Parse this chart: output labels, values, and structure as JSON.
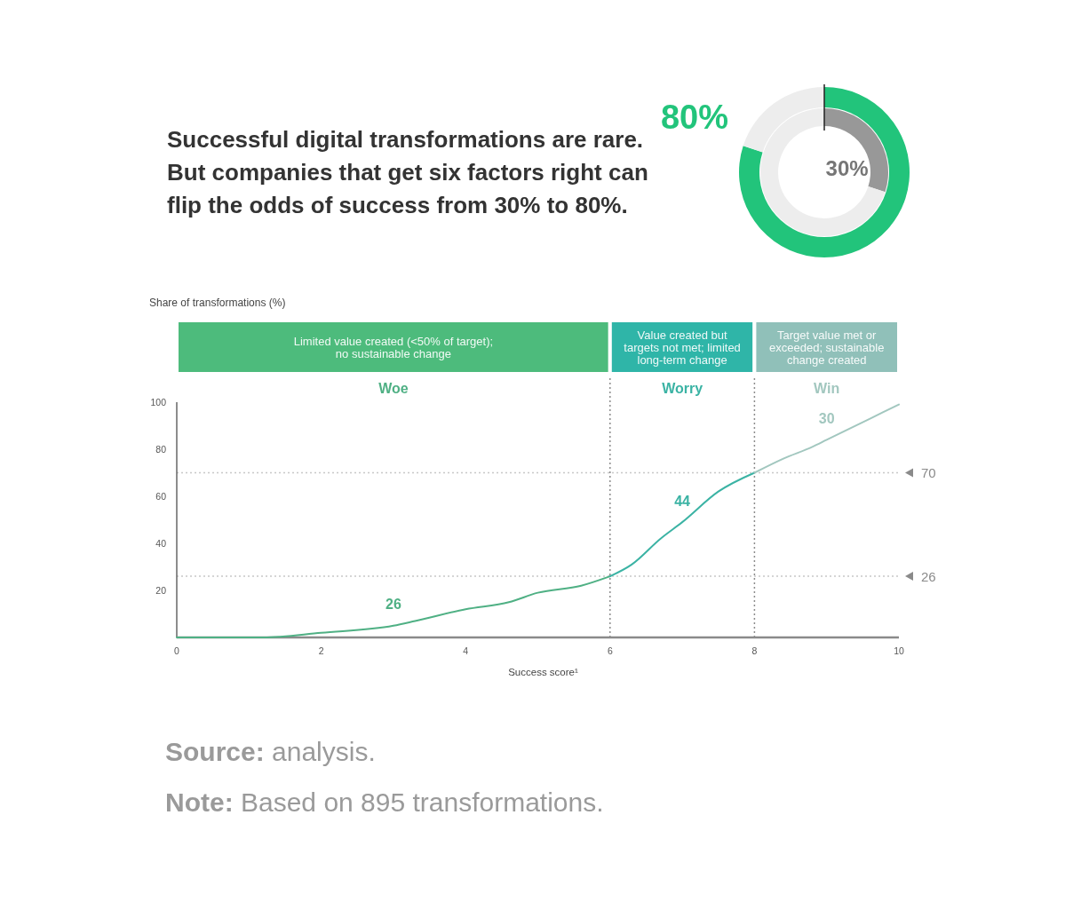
{
  "chart_data": [
    {
      "type": "donut",
      "title": "Successful digital transformations are rare. But companies that get six factors right can flip the odds of success from 30% to 80%.",
      "series": [
        {
          "values": [
            80,
            20
          ],
          "colors": [
            "#22c47b",
            "#ededed"
          ],
          "value_labels": [
            "80%",
            null
          ]
        },
        {
          "values": [
            30,
            70
          ],
          "colors": [
            "#989898",
            "#ededed"
          ],
          "value_labels": [
            "30%",
            null
          ]
        }
      ]
    },
    {
      "type": "bar",
      "orientation": "horizontal",
      "stacked": true,
      "categories": [
        null
      ],
      "xlim": [
        0,
        10
      ],
      "tick_labels": false,
      "series": [
        {
          "name": "Limited value created (<50% of target); no sustainable change",
          "color": "#4dbb7c",
          "values": [
            6
          ]
        },
        {
          "name": "Value created but targets not met; limited long-term change",
          "color": "#2fb5a8",
          "values": [
            2
          ]
        },
        {
          "name": "Target value met or exceeded; sustainable change created",
          "color": "#90c0b9",
          "values": [
            2
          ]
        }
      ]
    },
    {
      "type": "line",
      "ylabel": "Share of transformations (%)",
      "xlabel": "Success score¹",
      "xlim": [
        0,
        10
      ],
      "ylim": [
        0,
        100
      ],
      "xticks": [
        0,
        2,
        4,
        6,
        8,
        10
      ],
      "yticks": [
        20,
        40,
        60,
        80,
        100
      ],
      "series": [
        {
          "name": "Woe",
          "color": "#4fb084",
          "x": [
            0,
            0.8,
            1.2,
            2,
            3,
            3.3,
            4,
            4.6,
            5,
            5.6,
            6
          ],
          "values": [
            0,
            0,
            0,
            2,
            5,
            7,
            12,
            15,
            19,
            22,
            26
          ]
        },
        {
          "name": "Worry",
          "color": "#3bb3a4",
          "x": [
            6,
            6.3,
            6.7,
            7,
            7.5,
            8
          ],
          "values": [
            26,
            31,
            42,
            49,
            62,
            70
          ]
        },
        {
          "name": "Win",
          "color": "#a2c7bf",
          "x": [
            8,
            8.4,
            8.8,
            9,
            9.6,
            10
          ],
          "values": [
            70,
            76,
            81,
            84,
            93,
            99
          ]
        }
      ],
      "ref_lines": [
        {
          "axis": "y",
          "value": 70,
          "label": "70",
          "line_style": "dotted",
          "color": "#c8c8c8"
        },
        {
          "axis": "y",
          "value": 26,
          "label": "26",
          "line_style": "dotted",
          "color": "#c8c8c8"
        },
        {
          "axis": "x",
          "value": 6,
          "line_style": "dotted",
          "color": "#8c8c8c"
        },
        {
          "axis": "x",
          "value": 8,
          "line_style": "dotted",
          "color": "#8c8c8c"
        }
      ],
      "annotations": [
        {
          "text": "26",
          "x": 3,
          "y": 5
        },
        {
          "text": "44",
          "x": 7,
          "y": 49
        },
        {
          "text": "30",
          "x": 9,
          "y": 84
        },
        "Source: analysis.",
        "Note: Based on 895 transformations."
      ]
    }
  ]
}
